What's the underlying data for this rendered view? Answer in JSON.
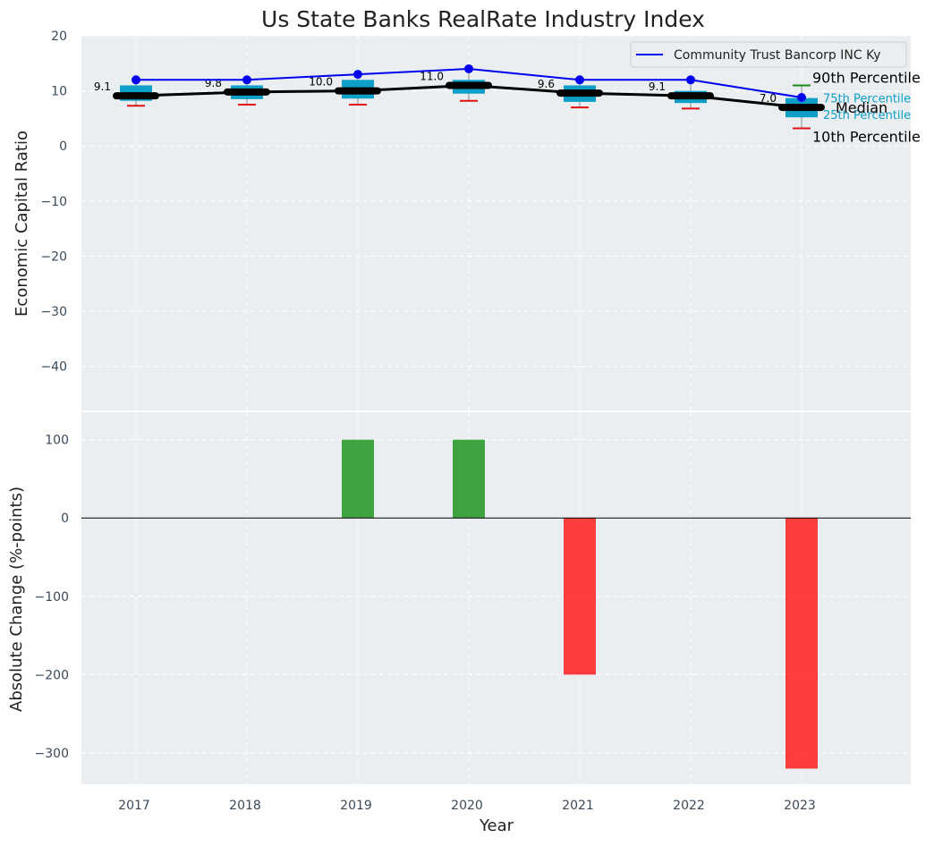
{
  "chart_data": [
    {
      "type": "box_line",
      "title": "Us State Banks RealRate Industry Index",
      "ylabel": "Economic Capital Ratio",
      "ylim": [
        -48,
        20
      ],
      "yticks": [
        20,
        10,
        0,
        -10,
        -20,
        -30,
        -40
      ],
      "ytick_labels": [
        "20",
        "10",
        "0",
        "−10",
        "−20",
        "−30",
        "−40"
      ],
      "categories": [
        "2017",
        "2018",
        "2019",
        "2020",
        "2021",
        "2022",
        "2023"
      ],
      "percentiles": {
        "p10": [
          7.3,
          7.5,
          7.5,
          8.2,
          7.0,
          6.8,
          3.2
        ],
        "p25": [
          8.2,
          8.5,
          8.6,
          9.5,
          8.0,
          7.8,
          5.2
        ],
        "median": [
          9.1,
          9.8,
          10.0,
          11.0,
          9.6,
          9.1,
          7.0
        ],
        "p75": [
          11.0,
          11.0,
          12.0,
          12.0,
          11.0,
          10.0,
          8.7
        ],
        "p90": [
          12.0,
          12.0,
          13.0,
          14.0,
          12.0,
          12.0,
          11.0
        ]
      },
      "median_labels": [
        "9.1",
        "9.8",
        "10.0",
        "11.0",
        "9.6",
        "9.1",
        "7.0"
      ],
      "series": [
        {
          "name": "Community Trust Bancorp INC Ky",
          "values": [
            12,
            12,
            13,
            14,
            12,
            12,
            8.8
          ]
        }
      ],
      "legend": {
        "label": "Community Trust Bancorp INC Ky",
        "position": "top-right"
      },
      "annotations": {
        "p90": "90th Percentile",
        "p75": "75th Percentile",
        "median": "Median",
        "p25": "25th Percentile",
        "p10": "10th Percentile"
      }
    },
    {
      "type": "bar",
      "xlabel": "Year",
      "ylabel": "Absolute Change (%-points)",
      "ylim": [
        -340,
        135
      ],
      "yticks": [
        100,
        0,
        -100,
        -200,
        -300
      ],
      "ytick_labels": [
        "100",
        "0",
        "−100",
        "−200",
        "−300"
      ],
      "categories": [
        "2017",
        "2018",
        "2019",
        "2020",
        "2021",
        "2022",
        "2023"
      ],
      "values": [
        0,
        0,
        100,
        100,
        -200,
        0,
        -320
      ]
    }
  ],
  "colors": {
    "background": "#eaeef0",
    "grid": "#ffffff",
    "box": "#0ea0c8",
    "whisker_low": "#e01010",
    "whisker_high": "#1a8a1a",
    "median": "#000000",
    "company_line": "#0000ee",
    "bar_positive": "#2e9a2e",
    "bar_negative": "#ff2a2a",
    "text": "#333333",
    "tick_text": "#3a4a5a"
  }
}
